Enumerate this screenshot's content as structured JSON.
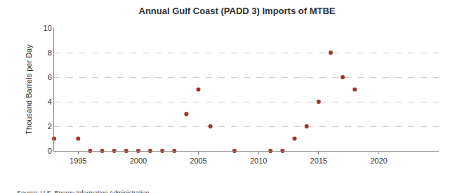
{
  "chart_data": {
    "type": "scatter",
    "title": "Annual Gulf Coast (PADD 3) Imports of MTBE",
    "y_label": "Thousand Barrels per Day",
    "source": "Source: U.S. Energy Information Administration",
    "x": [
      1993,
      1995,
      1996,
      1997,
      1998,
      1999,
      2000,
      2001,
      2002,
      2003,
      2004,
      2005,
      2006,
      2008,
      2011,
      2012,
      2013,
      2014,
      2015,
      2016,
      2017,
      2018
    ],
    "values": [
      1,
      1,
      0,
      0,
      0,
      0,
      0,
      0,
      0,
      0,
      3,
      5,
      2,
      0,
      0,
      0,
      1,
      2,
      4,
      8,
      6,
      5
    ],
    "color": "#a33327",
    "marker": "circle",
    "xlim": [
      1993,
      2025
    ],
    "xticks": [
      1995,
      2000,
      2005,
      2010,
      2015,
      2020
    ],
    "ylim": [
      0,
      10
    ],
    "yticks": [
      0,
      2,
      4,
      6,
      8,
      10
    ],
    "grid": true
  }
}
